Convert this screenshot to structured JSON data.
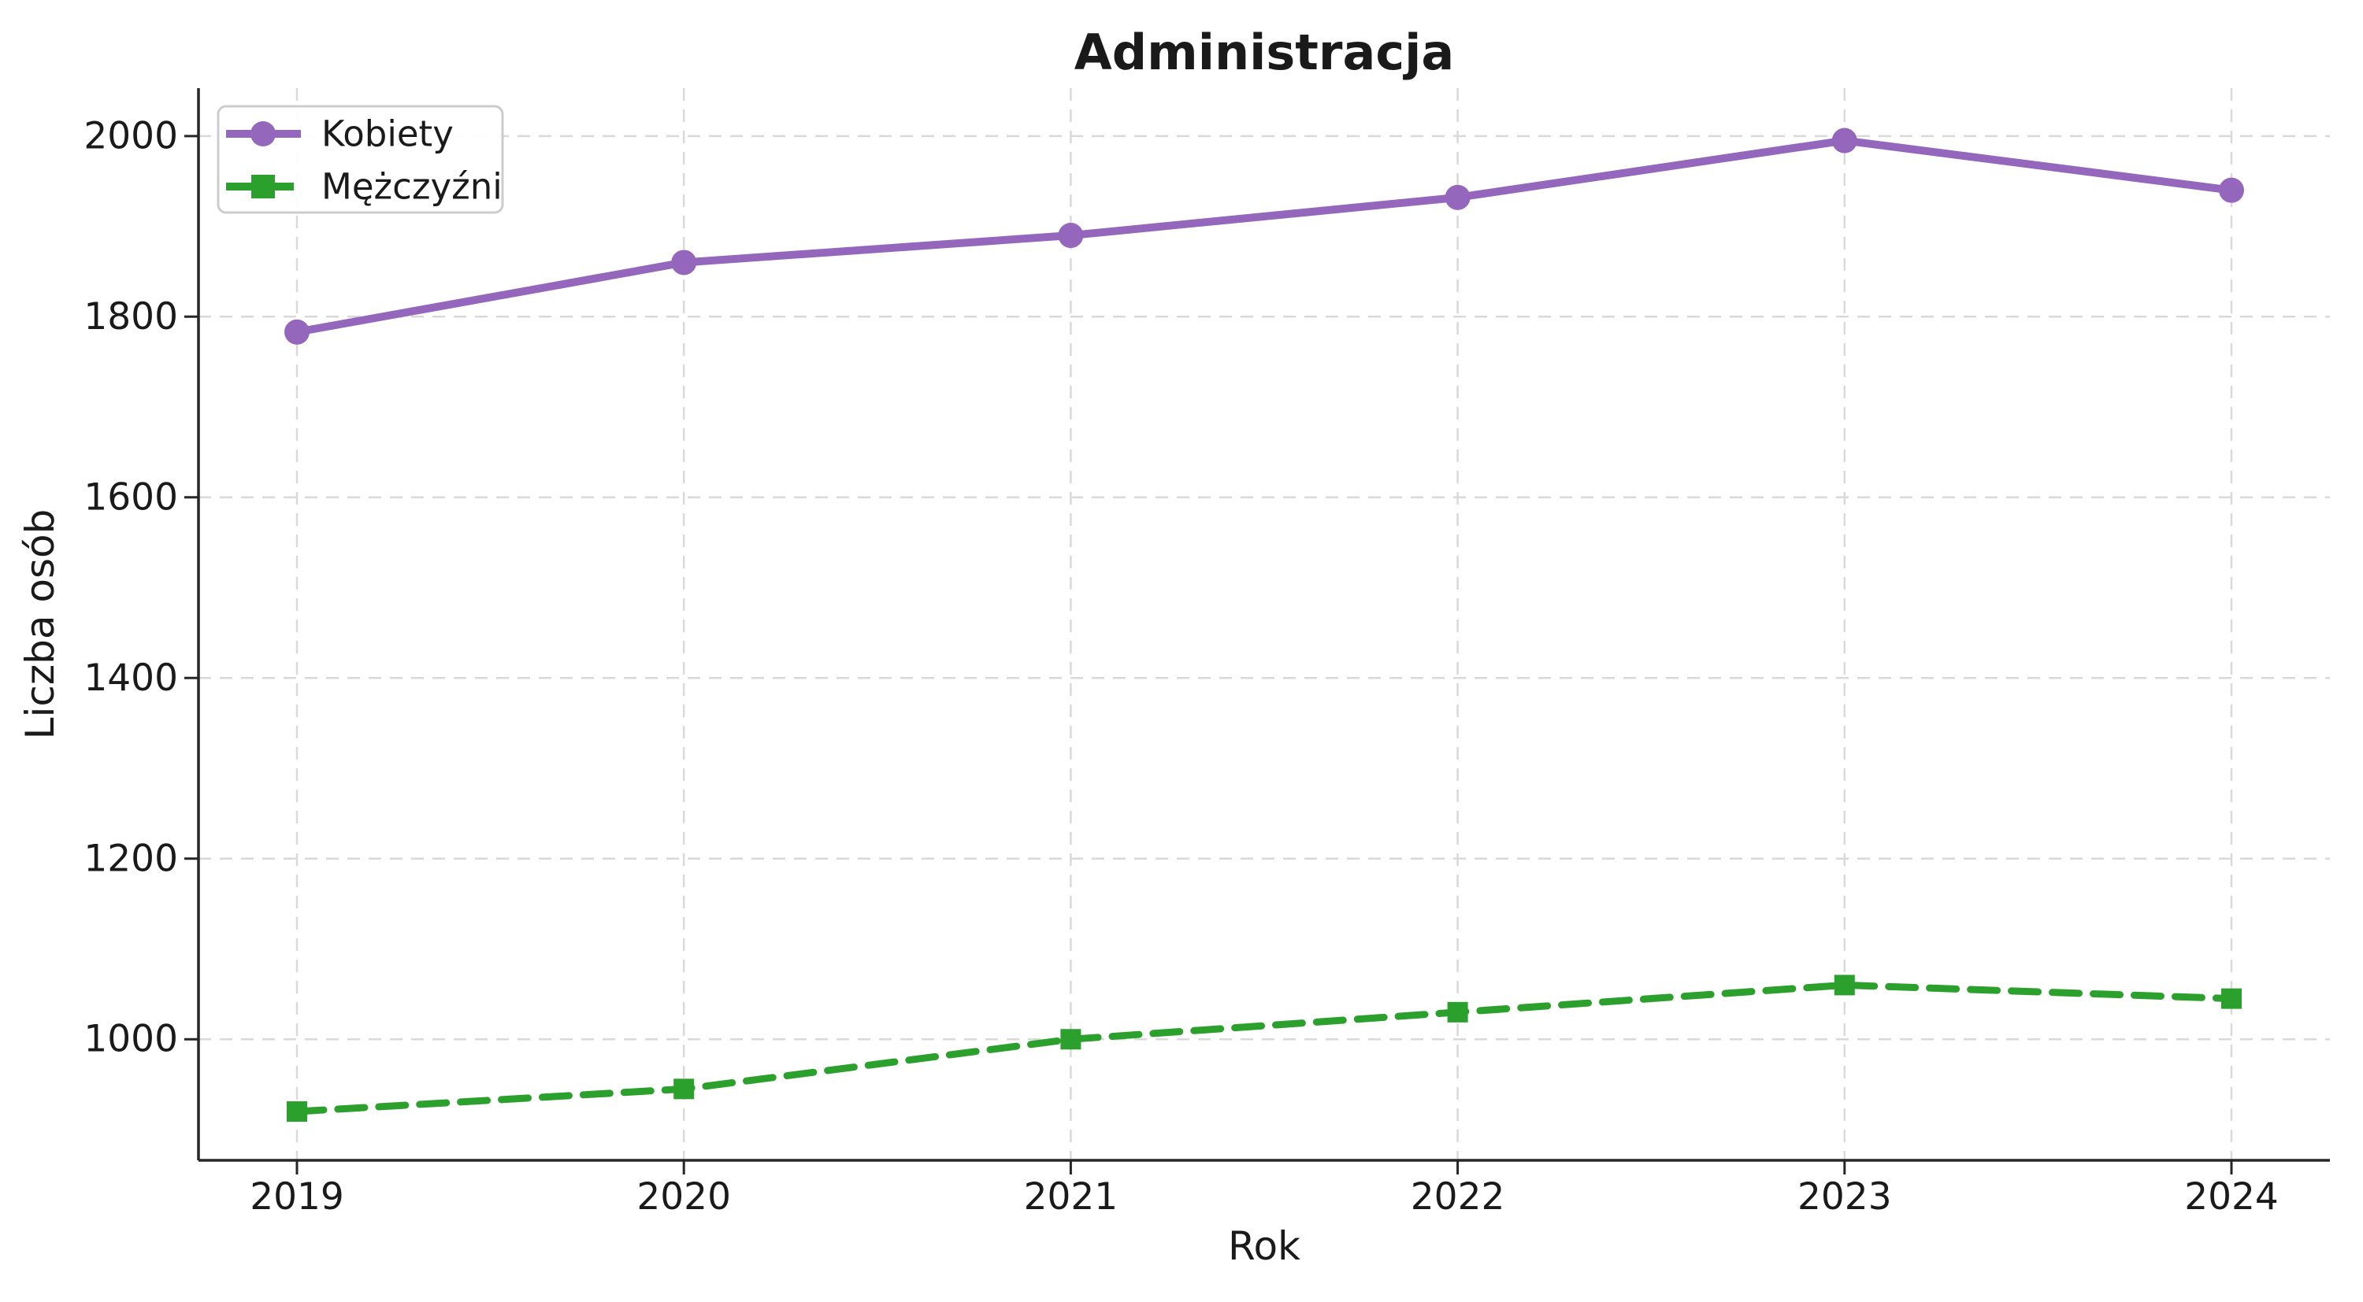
{
  "chart_data": {
    "type": "line",
    "title": "Administracja",
    "xlabel": "Rok",
    "ylabel": "Liczba osób",
    "categories": [
      "2019",
      "2020",
      "2021",
      "2022",
      "2023",
      "2024"
    ],
    "yticks": [
      1000,
      1200,
      1400,
      1600,
      1800,
      2000
    ],
    "ylim": [
      866,
      2053
    ],
    "grid": true,
    "grid_style": "dashed",
    "legend_position": "upper-left",
    "series": [
      {
        "name": "Kobiety",
        "color": "#9467bd",
        "marker": "circle",
        "line_style": "solid",
        "values": [
          1783,
          1860,
          1890,
          1932,
          1995,
          1940
        ]
      },
      {
        "name": "Mężczyźni",
        "color": "#2ca02c",
        "marker": "square",
        "line_style": "dashed",
        "values": [
          920,
          945,
          1000,
          1030,
          1060,
          1045
        ]
      }
    ],
    "colors": {
      "text": "#1a1a1a",
      "grid": "#d9d9d9",
      "spine": "#262626",
      "legend_border": "#cccccc",
      "background": "#ffffff"
    }
  }
}
